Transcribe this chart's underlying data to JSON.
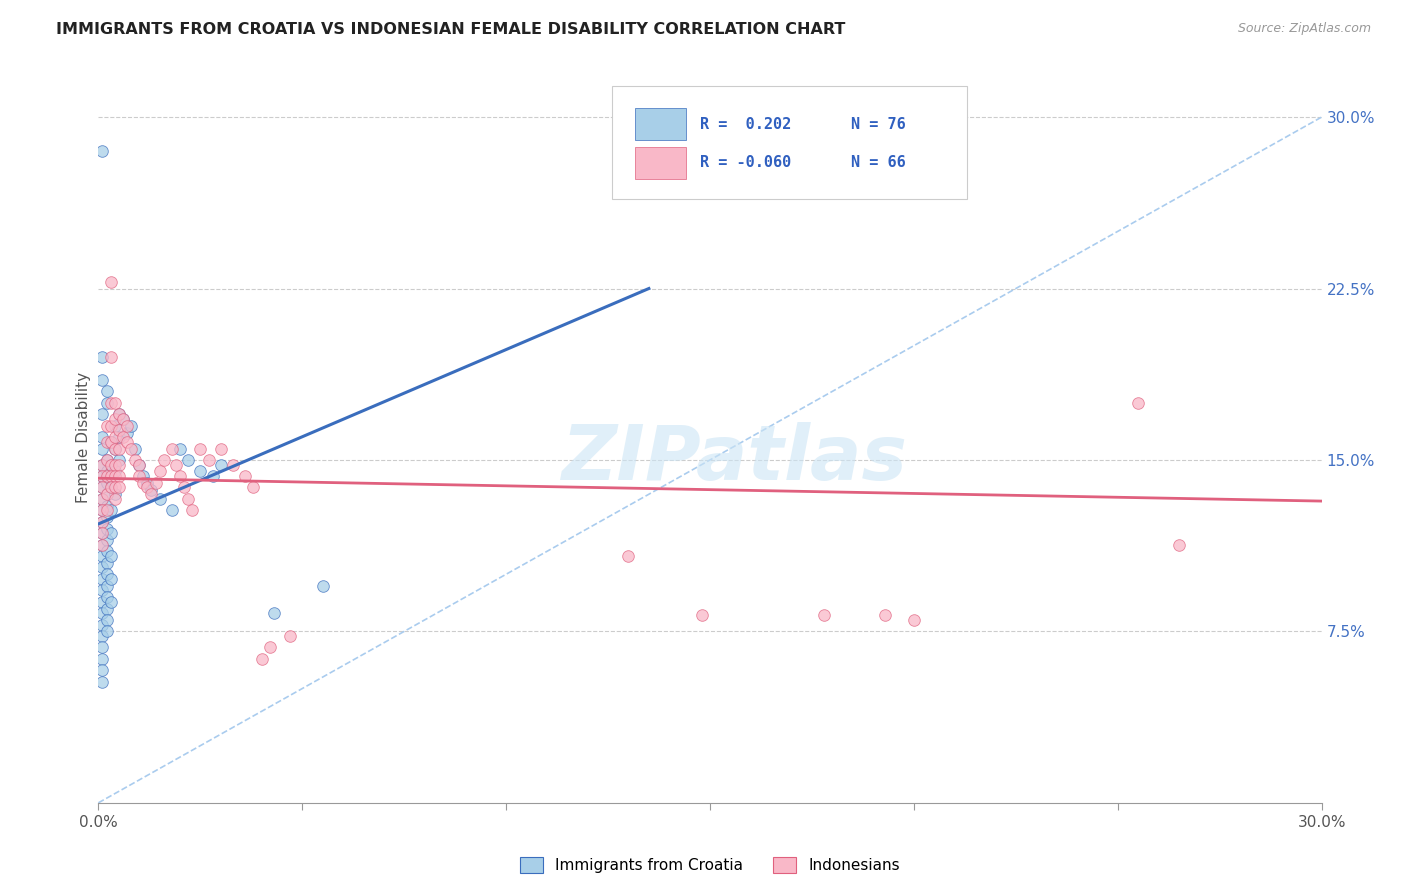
{
  "title": "IMMIGRANTS FROM CROATIA VS INDONESIAN FEMALE DISABILITY CORRELATION CHART",
  "source": "Source: ZipAtlas.com",
  "ylabel": "Female Disability",
  "xmin": 0.0,
  "xmax": 0.3,
  "ymin": 0.0,
  "ymax": 0.32,
  "xticks": [
    0.0,
    0.05,
    0.1,
    0.15,
    0.2,
    0.25,
    0.3
  ],
  "xtick_labels": [
    "0.0%",
    "",
    "",
    "",
    "",
    "",
    "30.0%"
  ],
  "ytick_right": [
    0.075,
    0.15,
    0.225,
    0.3
  ],
  "ytick_right_labels": [
    "7.5%",
    "15.0%",
    "22.5%",
    "30.0%"
  ],
  "color_blue": "#a8cfe8",
  "color_pink": "#f9b8c8",
  "color_trend_blue": "#3a6dbd",
  "color_trend_pink": "#e0607e",
  "color_trend_gray": "#aaccee",
  "watermark": "ZIPatlas",
  "blue_scatter": [
    [
      0.001,
      0.285
    ],
    [
      0.001,
      0.195
    ],
    [
      0.001,
      0.185
    ],
    [
      0.001,
      0.17
    ],
    [
      0.002,
      0.18
    ],
    [
      0.002,
      0.175
    ],
    [
      0.001,
      0.16
    ],
    [
      0.001,
      0.155
    ],
    [
      0.001,
      0.148
    ],
    [
      0.001,
      0.143
    ],
    [
      0.001,
      0.138
    ],
    [
      0.001,
      0.133
    ],
    [
      0.001,
      0.128
    ],
    [
      0.001,
      0.123
    ],
    [
      0.001,
      0.118
    ],
    [
      0.001,
      0.113
    ],
    [
      0.001,
      0.108
    ],
    [
      0.001,
      0.103
    ],
    [
      0.001,
      0.098
    ],
    [
      0.001,
      0.093
    ],
    [
      0.001,
      0.088
    ],
    [
      0.001,
      0.083
    ],
    [
      0.001,
      0.078
    ],
    [
      0.001,
      0.073
    ],
    [
      0.001,
      0.068
    ],
    [
      0.001,
      0.063
    ],
    [
      0.001,
      0.058
    ],
    [
      0.001,
      0.053
    ],
    [
      0.002,
      0.15
    ],
    [
      0.002,
      0.145
    ],
    [
      0.002,
      0.14
    ],
    [
      0.002,
      0.135
    ],
    [
      0.002,
      0.13
    ],
    [
      0.002,
      0.125
    ],
    [
      0.002,
      0.12
    ],
    [
      0.002,
      0.115
    ],
    [
      0.002,
      0.11
    ],
    [
      0.002,
      0.105
    ],
    [
      0.002,
      0.1
    ],
    [
      0.002,
      0.095
    ],
    [
      0.002,
      0.09
    ],
    [
      0.002,
      0.085
    ],
    [
      0.002,
      0.08
    ],
    [
      0.002,
      0.075
    ],
    [
      0.003,
      0.158
    ],
    [
      0.003,
      0.148
    ],
    [
      0.003,
      0.138
    ],
    [
      0.003,
      0.128
    ],
    [
      0.003,
      0.118
    ],
    [
      0.003,
      0.108
    ],
    [
      0.003,
      0.098
    ],
    [
      0.003,
      0.088
    ],
    [
      0.004,
      0.165
    ],
    [
      0.004,
      0.155
    ],
    [
      0.004,
      0.145
    ],
    [
      0.004,
      0.135
    ],
    [
      0.005,
      0.17
    ],
    [
      0.005,
      0.16
    ],
    [
      0.005,
      0.15
    ],
    [
      0.006,
      0.168
    ],
    [
      0.007,
      0.162
    ],
    [
      0.008,
      0.165
    ],
    [
      0.009,
      0.155
    ],
    [
      0.01,
      0.148
    ],
    [
      0.011,
      0.143
    ],
    [
      0.012,
      0.14
    ],
    [
      0.013,
      0.137
    ],
    [
      0.015,
      0.133
    ],
    [
      0.018,
      0.128
    ],
    [
      0.02,
      0.155
    ],
    [
      0.022,
      0.15
    ],
    [
      0.025,
      0.145
    ],
    [
      0.028,
      0.143
    ],
    [
      0.03,
      0.148
    ],
    [
      0.043,
      0.083
    ],
    [
      0.055,
      0.095
    ]
  ],
  "pink_scatter": [
    [
      0.001,
      0.148
    ],
    [
      0.001,
      0.143
    ],
    [
      0.001,
      0.138
    ],
    [
      0.001,
      0.133
    ],
    [
      0.001,
      0.128
    ],
    [
      0.001,
      0.123
    ],
    [
      0.001,
      0.118
    ],
    [
      0.001,
      0.113
    ],
    [
      0.002,
      0.165
    ],
    [
      0.002,
      0.158
    ],
    [
      0.002,
      0.15
    ],
    [
      0.002,
      0.143
    ],
    [
      0.002,
      0.135
    ],
    [
      0.002,
      0.128
    ],
    [
      0.003,
      0.228
    ],
    [
      0.003,
      0.195
    ],
    [
      0.003,
      0.175
    ],
    [
      0.003,
      0.165
    ],
    [
      0.003,
      0.158
    ],
    [
      0.003,
      0.148
    ],
    [
      0.003,
      0.143
    ],
    [
      0.003,
      0.138
    ],
    [
      0.004,
      0.175
    ],
    [
      0.004,
      0.168
    ],
    [
      0.004,
      0.16
    ],
    [
      0.004,
      0.155
    ],
    [
      0.004,
      0.148
    ],
    [
      0.004,
      0.143
    ],
    [
      0.004,
      0.138
    ],
    [
      0.004,
      0.133
    ],
    [
      0.005,
      0.17
    ],
    [
      0.005,
      0.163
    ],
    [
      0.005,
      0.155
    ],
    [
      0.005,
      0.148
    ],
    [
      0.005,
      0.143
    ],
    [
      0.005,
      0.138
    ],
    [
      0.006,
      0.168
    ],
    [
      0.006,
      0.16
    ],
    [
      0.007,
      0.165
    ],
    [
      0.007,
      0.158
    ],
    [
      0.008,
      0.155
    ],
    [
      0.009,
      0.15
    ],
    [
      0.01,
      0.148
    ],
    [
      0.01,
      0.143
    ],
    [
      0.011,
      0.14
    ],
    [
      0.012,
      0.138
    ],
    [
      0.013,
      0.135
    ],
    [
      0.014,
      0.14
    ],
    [
      0.015,
      0.145
    ],
    [
      0.016,
      0.15
    ],
    [
      0.018,
      0.155
    ],
    [
      0.019,
      0.148
    ],
    [
      0.02,
      0.143
    ],
    [
      0.021,
      0.138
    ],
    [
      0.022,
      0.133
    ],
    [
      0.023,
      0.128
    ],
    [
      0.025,
      0.155
    ],
    [
      0.027,
      0.15
    ],
    [
      0.03,
      0.155
    ],
    [
      0.033,
      0.148
    ],
    [
      0.036,
      0.143
    ],
    [
      0.038,
      0.138
    ],
    [
      0.04,
      0.063
    ],
    [
      0.042,
      0.068
    ],
    [
      0.047,
      0.073
    ],
    [
      0.13,
      0.108
    ],
    [
      0.148,
      0.082
    ],
    [
      0.178,
      0.082
    ],
    [
      0.193,
      0.082
    ],
    [
      0.2,
      0.08
    ],
    [
      0.255,
      0.175
    ],
    [
      0.265,
      0.113
    ]
  ],
  "blue_trend_start_x": 0.0,
  "blue_trend_start_y": 0.122,
  "blue_trend_end_x": 0.135,
  "blue_trend_end_y": 0.225,
  "pink_trend_start_x": 0.0,
  "pink_trend_start_y": 0.142,
  "pink_trend_end_x": 0.3,
  "pink_trend_end_y": 0.132,
  "gray_trend_start_x": 0.0,
  "gray_trend_start_y": 0.0,
  "gray_trend_end_x": 0.3,
  "gray_trend_end_y": 0.3
}
